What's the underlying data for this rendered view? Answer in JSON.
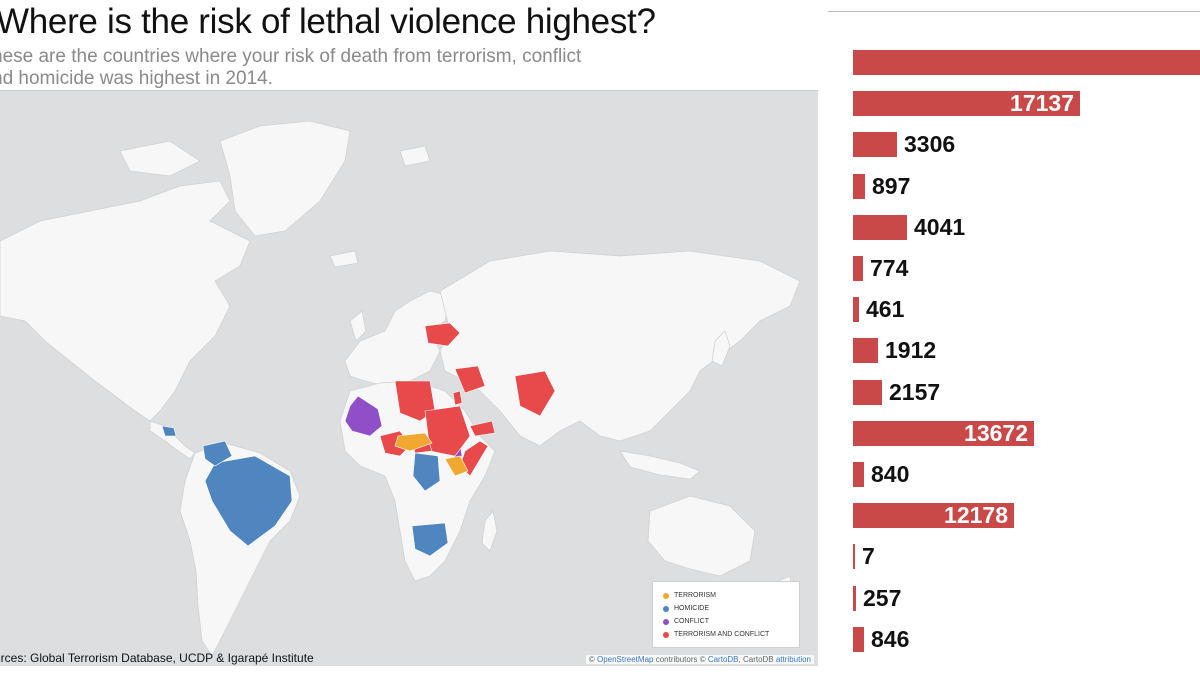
{
  "header": {
    "title": "Where is the risk of lethal violence highest?",
    "subtitle_line1": "hese are the countries where your risk of death from terrorism, conflict",
    "subtitle_line2": "nd homicide was highest in 2014."
  },
  "map": {
    "source": "urces: Global Terrorism Database, UCDP & Igarapé Institute",
    "attribution_prefix": "© ",
    "attribution_osm": "OpenStreetMap",
    "attribution_mid": " contributors © ",
    "attribution_carto": "CartoDB",
    "attribution_mid2": ", CartoDB ",
    "attribution_link": "attribution",
    "legend": [
      {
        "label": "TERRORISM",
        "color": "#f0a830"
      },
      {
        "label": "HOMICIDE",
        "color": "#4f86c0"
      },
      {
        "label": "CONFLICT",
        "color": "#8e4fc8"
      },
      {
        "label": "TERRORISM AND CONFLICT",
        "color": "#e8494a"
      }
    ],
    "colors": {
      "ocean": "#dcdee0",
      "land": "#f7f7f7",
      "terrorism": "#f0a830",
      "homicide": "#4f86c0",
      "conflict": "#8e4fc8",
      "terrorism_and_conflict": "#e8494a"
    }
  },
  "chart_data": {
    "type": "bar",
    "orientation": "horizontal",
    "bar_color": "#c94848",
    "values": [
      null,
      17137,
      3306,
      897,
      4041,
      774,
      461,
      1912,
      2157,
      13672,
      840,
      12178,
      7,
      257,
      846
    ],
    "labels": [
      "",
      "17137",
      "3306",
      "897",
      "4041",
      "774",
      "461",
      "1912",
      "2157",
      "13672",
      "840",
      "12178",
      "7",
      "257",
      "846"
    ],
    "top_bar_note": "first bar extends beyond the visible area; its label is not visible",
    "xlim": [
      0,
      17137
    ]
  }
}
